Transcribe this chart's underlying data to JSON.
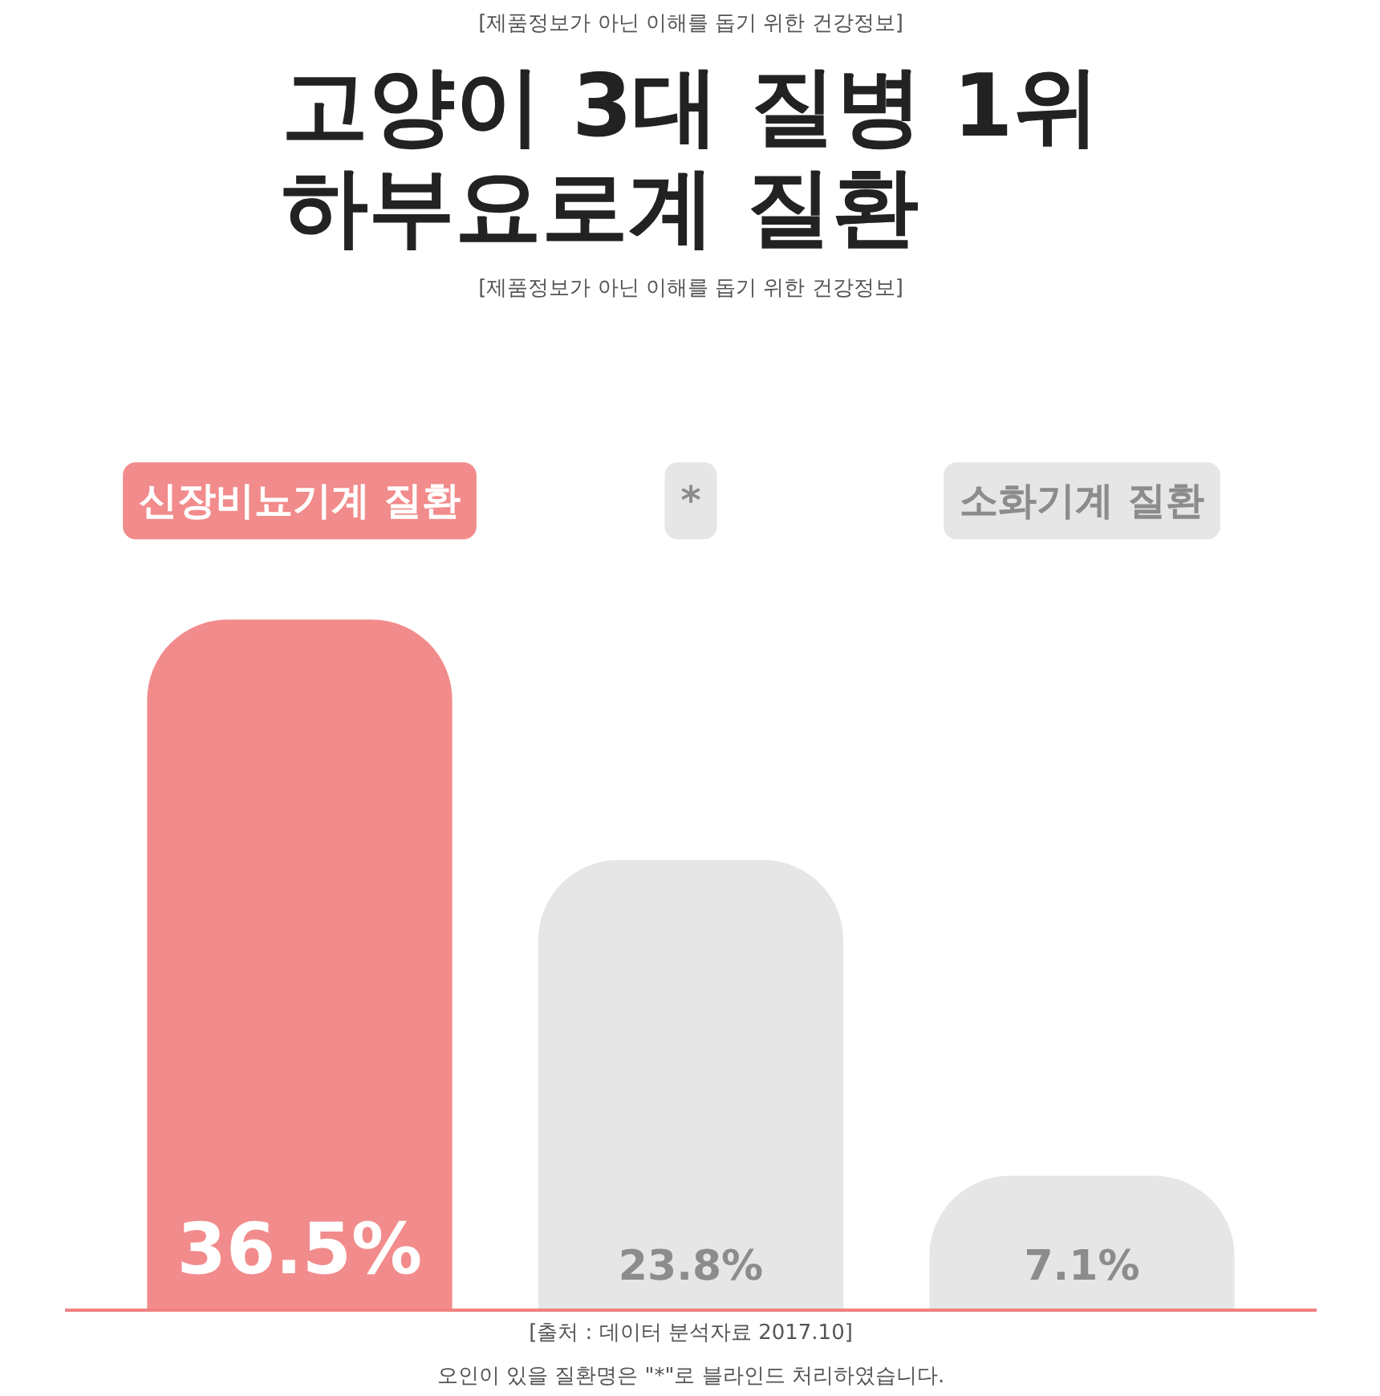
{
  "chart_data": {
    "type": "bar",
    "subtitle": "[제품정보가 아닌 이해를 돕기 위한 건강정보]",
    "title": "고양이 3대 질병 1위\n하부요로계 질환",
    "categories": [
      "신장비뇨기계 질환",
      "*",
      "소화기계 질환"
    ],
    "values": [
      36.5,
      23.8,
      7.1
    ],
    "colors": [
      "#f28b8b",
      "#e6e6e6",
      "#e6e6e6"
    ],
    "data_labels": true,
    "value_labels": [
      "36.5%",
      "23.8%",
      "7.1%"
    ],
    "annotations": [
      "[제품정보가 아닌 이해를 돕기 위한 건강정보]",
      "[출처 : 데이터 분석자료 2017.10]",
      "오인이 있을 질환명은 \"*\"로 블라인드 처리하였습니다."
    ]
  }
}
